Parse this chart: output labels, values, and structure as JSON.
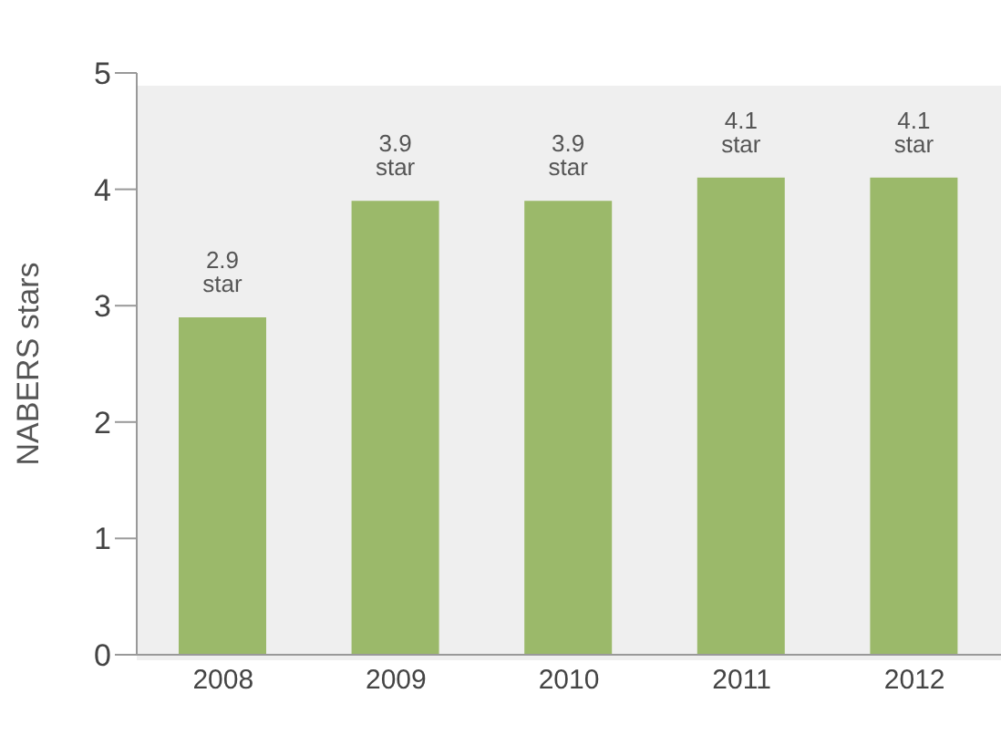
{
  "chart_data": {
    "type": "bar",
    "ylabel": "NABERS stars",
    "categories": [
      "2008",
      "2009",
      "2010",
      "2011",
      "2012"
    ],
    "values": [
      2.9,
      3.9,
      3.9,
      4.1,
      4.1
    ],
    "color": "#9bb96a",
    "value_labels": [
      "2.9 star",
      "3.9 star",
      "3.9 star",
      "4.1 star",
      "4.1 star"
    ],
    "ylim": [
      0,
      5
    ],
    "yticks": [
      0,
      1,
      2,
      3,
      4,
      5
    ],
    "grid": false,
    "legend": false
  }
}
